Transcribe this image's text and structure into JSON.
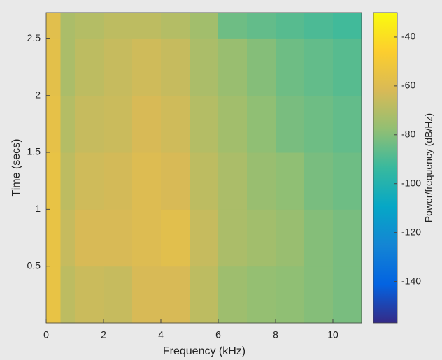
{
  "chart_data": {
    "type": "heatmap",
    "xlabel": "Frequency (kHz)",
    "ylabel": "Time (secs)",
    "colorbar_label": "Power/frequency (dB/Hz)",
    "x_edges": [
      0,
      0.5,
      1,
      2,
      3,
      4,
      5,
      6,
      7,
      8,
      9,
      10,
      11
    ],
    "y_edges": [
      0,
      0.5,
      1,
      1.5,
      2,
      2.5,
      2.73
    ],
    "z": [
      [
        -55,
        -68,
        -65,
        -66,
        -62,
        -62,
        -68,
        -75,
        -77,
        -78,
        -80,
        -82
      ],
      [
        -55,
        -66,
        -62,
        -62,
        -60,
        -58,
        -66,
        -72,
        -74,
        -76,
        -80,
        -82
      ],
      [
        -55,
        -68,
        -64,
        -63,
        -60,
        -62,
        -68,
        -72,
        -76,
        -78,
        -82,
        -84
      ],
      [
        -56,
        -70,
        -66,
        -65,
        -62,
        -64,
        -70,
        -74,
        -78,
        -82,
        -84,
        -86
      ],
      [
        -57,
        -72,
        -68,
        -66,
        -64,
        -66,
        -72,
        -76,
        -80,
        -84,
        -86,
        -88
      ],
      [
        -58,
        -72,
        -70,
        -68,
        -68,
        -70,
        -74,
        -84,
        -86,
        -88,
        -90,
        -92
      ]
    ],
    "xlim": [
      0,
      11
    ],
    "ylim": [
      0,
      2.73
    ],
    "zlim": [
      -157,
      -30
    ],
    "xticks": [
      0,
      2,
      4,
      6,
      8,
      10
    ],
    "yticks": [
      0.5,
      1,
      1.5,
      2,
      2.5
    ],
    "zticks": [
      -40,
      -60,
      -80,
      -100,
      -120,
      -140
    ],
    "colormap": [
      "#352a87",
      "#0363e1",
      "#1485d4",
      "#06a7c6",
      "#38b99e",
      "#92bf73",
      "#d9ba56",
      "#fcce2e",
      "#f9fb0e"
    ]
  }
}
